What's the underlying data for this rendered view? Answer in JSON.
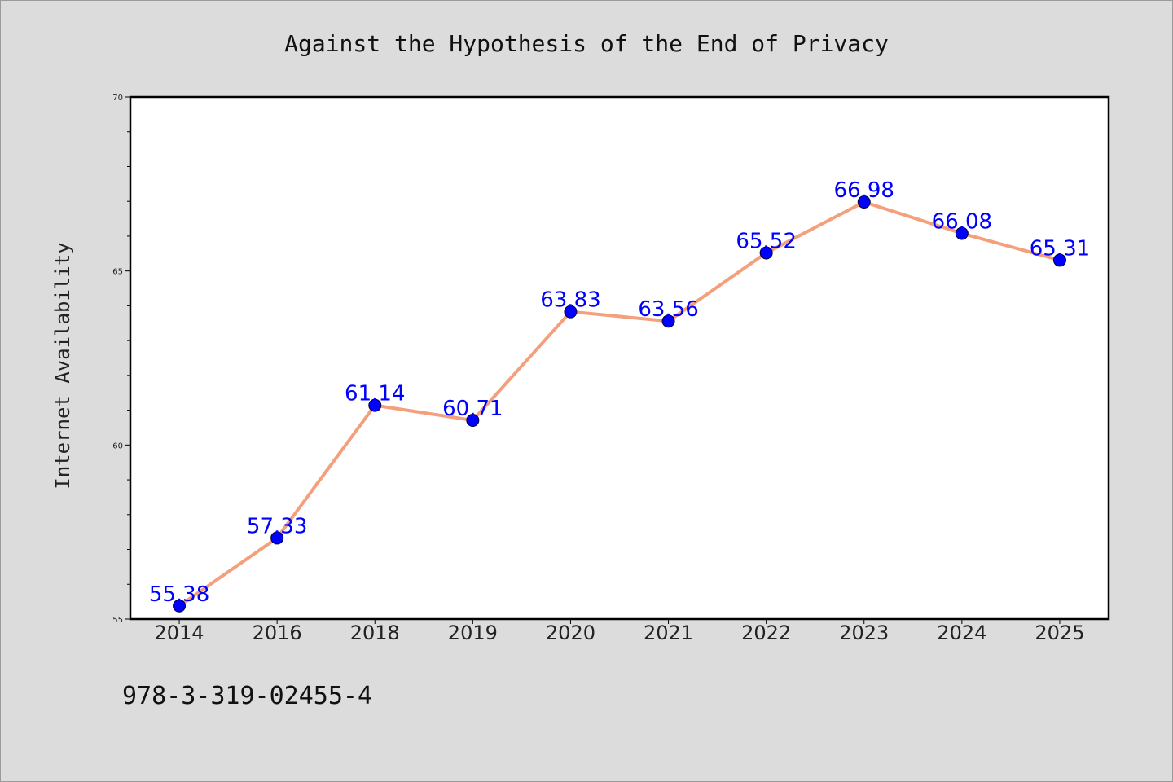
{
  "chart_data": {
    "type": "line",
    "title": "Against the Hypothesis of the End of Privacy",
    "xlabel": "",
    "ylabel": "Internet Availability",
    "categories": [
      "2014",
      "2016",
      "2018",
      "2019",
      "2020",
      "2021",
      "2022",
      "2023",
      "2024",
      "2025"
    ],
    "series": [
      {
        "values": [
          55.38,
          57.33,
          61.14,
          60.71,
          63.83,
          63.56,
          65.52,
          66.98,
          66.08,
          65.31
        ],
        "line_color": "#f4a07c",
        "marker_color": "#0000ff"
      }
    ],
    "data_labels": [
      "55.38",
      "57.33",
      "61.14",
      "60.71",
      "63.83",
      "63.56",
      "65.52",
      "66.98",
      "66.08",
      "65.31"
    ],
    "ylim": [
      55,
      70
    ],
    "yticks": [
      "55",
      "60",
      "65",
      "70"
    ],
    "grid": false,
    "legend": "none"
  },
  "footer": {
    "isbn": "978-3-319-02455-4"
  },
  "colors": {
    "background": "#dcdcdc",
    "plot_background": "#ffffff",
    "axis": "#000000",
    "data_label": "#0000ff"
  }
}
